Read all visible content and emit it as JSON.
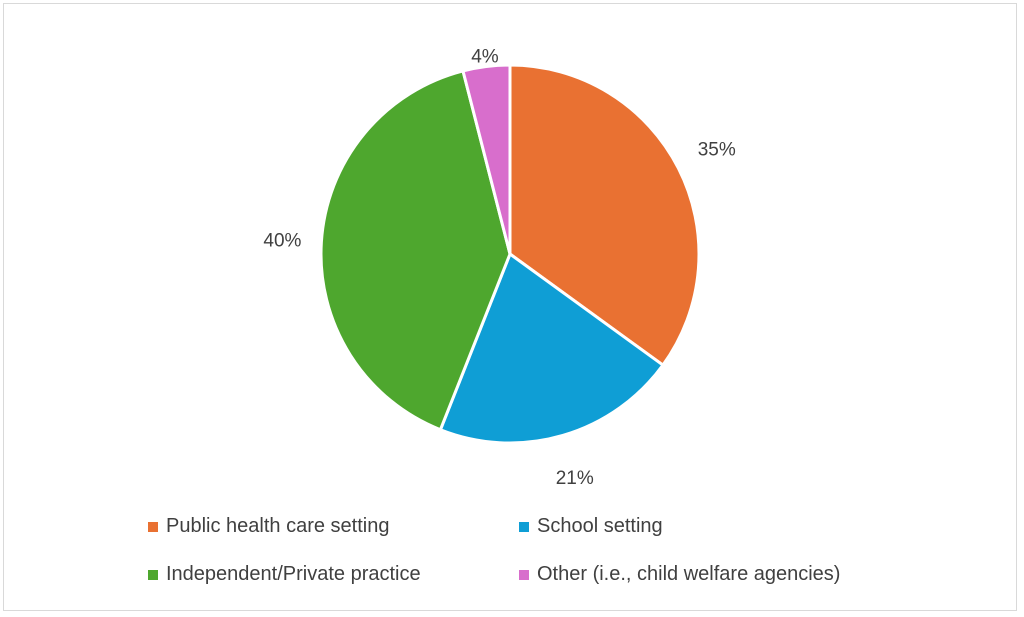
{
  "chart_data": {
    "type": "pie",
    "categories": [
      "Public health care setting",
      "School setting",
      "Independent/Private practice",
      "Other (i.e., child welfare agencies)"
    ],
    "values": [
      35,
      21,
      40,
      4
    ],
    "data_labels": [
      "35%",
      "21%",
      "40%",
      "4%"
    ],
    "colors": [
      "#E97132",
      "#0F9ED5",
      "#4EA72E",
      "#D86ECC"
    ],
    "start_angle": "top, clockwise",
    "legend_position": "bottom"
  }
}
